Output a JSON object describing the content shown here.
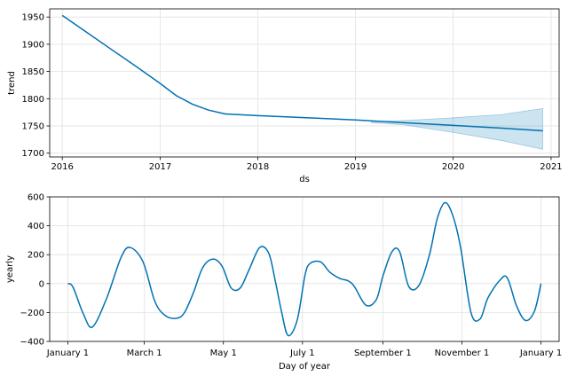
{
  "chart_data": [
    {
      "type": "line",
      "xlabel": "ds",
      "ylabel": "trend",
      "xlim": [
        "2015-11-15",
        "2021-01-31"
      ],
      "ylim": [
        1693,
        1965
      ],
      "x_ticks": [
        "2016",
        "2017",
        "2018",
        "2019",
        "2020",
        "2021"
      ],
      "y_ticks": [
        "1700",
        "1750",
        "1800",
        "1850",
        "1900",
        "1950"
      ],
      "grid": true,
      "colors": {
        "line": "#0072B2",
        "band": "#0072B2"
      },
      "series": [
        {
          "x": [
            "2016-01-01",
            "2016-04-01",
            "2016-07-01",
            "2016-10-01",
            "2017-01-01",
            "2017-03-01",
            "2017-05-01",
            "2017-07-01",
            "2017-09-01",
            "2018-01-01",
            "2018-07-01",
            "2019-01-01",
            "2019-07-01",
            "2020-01-01",
            "2020-07-01",
            "2020-12-01"
          ],
          "values": [
            1953,
            1922,
            1891,
            1860,
            1828,
            1806,
            1790,
            1779,
            1772,
            1769,
            1765,
            1761,
            1756,
            1751,
            1746,
            1741
          ]
        }
      ],
      "uncertainty": {
        "x": [
          "2019-03-01",
          "2019-07-01",
          "2020-01-01",
          "2020-07-01",
          "2020-12-01"
        ],
        "upper": [
          1758,
          1760,
          1765,
          1771,
          1782
        ],
        "lower": [
          1756,
          1752,
          1738,
          1723,
          1707
        ]
      }
    },
    {
      "type": "line",
      "xlabel": "Day of year",
      "ylabel": "yearly",
      "xlim": [
        -14,
        379
      ],
      "ylim": [
        -400,
        600
      ],
      "x_ticks": [
        "January 1",
        "March 1",
        "May 1",
        "July 1",
        "September 1",
        "November 1",
        "January 1"
      ],
      "x_tick_days": [
        0,
        59,
        120,
        181,
        243,
        304,
        365
      ],
      "y_ticks": [
        "−400",
        "−200",
        "0",
        "200",
        "400",
        "600"
      ],
      "y_tick_values": [
        -400,
        -200,
        0,
        200,
        400,
        600
      ],
      "grid": true,
      "colors": {
        "line": "#0072B2"
      },
      "series": [
        {
          "x": [
            0,
            4,
            12,
            19,
            30,
            41,
            48,
            58,
            67,
            75,
            84,
            90,
            97,
            104,
            112,
            119,
            126,
            133,
            140,
            148,
            155,
            160,
            165,
            170,
            177,
            183,
            187,
            195,
            202,
            210,
            216,
            221,
            230,
            238,
            243,
            250,
            256,
            263,
            271,
            279,
            285,
            291,
            297,
            303,
            311,
            318,
            324,
            333,
            339,
            346,
            353,
            360,
            365
          ],
          "values": [
            0,
            -25,
            -210,
            -300,
            -100,
            180,
            250,
            150,
            -120,
            -220,
            -240,
            -200,
            -60,
            110,
            170,
            120,
            -30,
            -30,
            100,
            250,
            210,
            20,
            -200,
            -360,
            -250,
            60,
            140,
            150,
            80,
            35,
            20,
            -20,
            -150,
            -110,
            50,
            220,
            220,
            -20,
            -10,
            200,
            450,
            560,
            470,
            250,
            -200,
            -245,
            -100,
            20,
            40,
            -150,
            -255,
            -190,
            0
          ]
        }
      ]
    }
  ]
}
